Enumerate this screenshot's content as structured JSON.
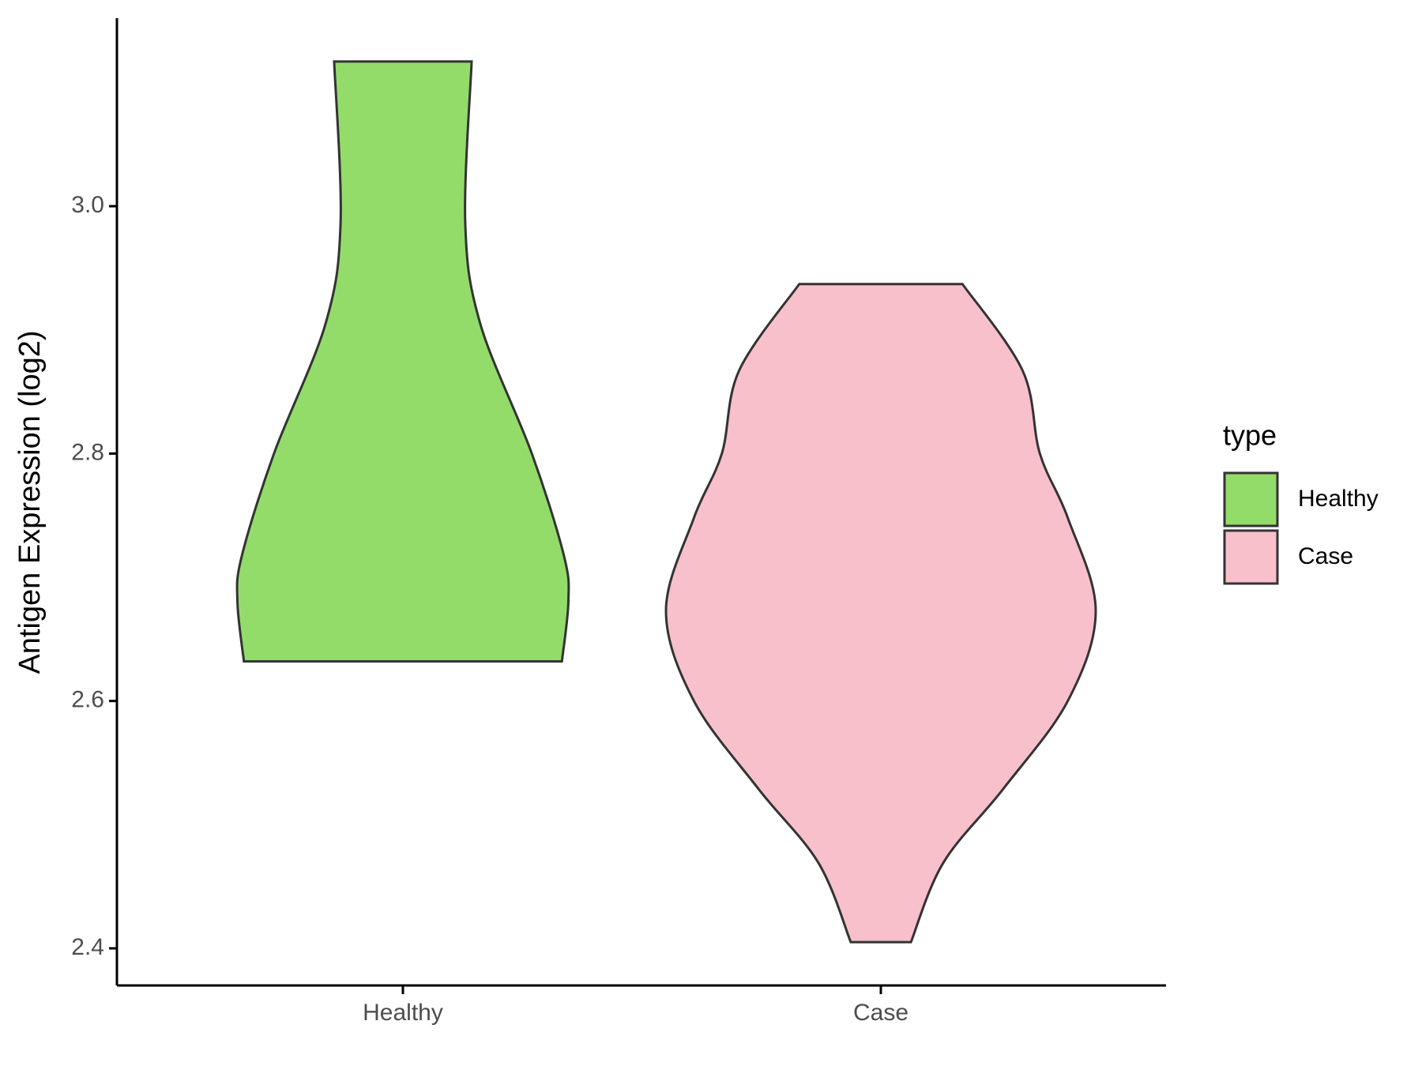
{
  "chart_data": {
    "type": "violin",
    "ylabel": "Antigen Expression (log2)",
    "categories": [
      "Healthy",
      "Case"
    ],
    "legend_title": "type",
    "series": [
      {
        "name": "Healthy",
        "color": "#93dc6a",
        "y": [
          2.632,
          2.68,
          2.717,
          2.8,
          2.905,
          2.987,
          3.117
        ],
        "widths": [
          0.74,
          0.77,
          0.75,
          0.6,
          0.36,
          0.29,
          0.32
        ]
      },
      {
        "name": "Case",
        "color": "#f8c0cb",
        "y": [
          2.405,
          2.469,
          2.529,
          2.6,
          2.673,
          2.748,
          2.8,
          2.867,
          2.937
        ],
        "widths": [
          0.14,
          0.29,
          0.57,
          0.87,
          1,
          0.87,
          0.74,
          0.66,
          0.38
        ]
      }
    ],
    "ylim": [
      2.37,
      3.152
    ],
    "yticks": [
      2.4,
      2.6,
      2.8,
      {
        "value": 3,
        "label": "3.0"
      }
    ],
    "legend_position": "right"
  }
}
